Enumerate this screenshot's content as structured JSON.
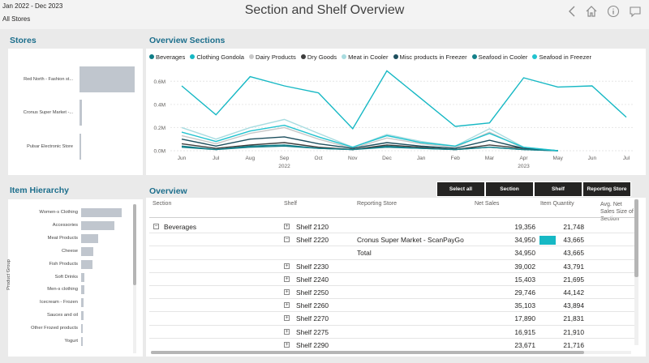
{
  "header": {
    "date_range": "Jan 2022 - Dec 2023",
    "stores_filter": "All Stores",
    "title": "Section and Shelf Overview",
    "icons": [
      "back-icon",
      "home-icon",
      "info-icon",
      "comment-icon"
    ]
  },
  "stores": {
    "title": "Stores",
    "items": [
      {
        "label": "Red North - Fashion st...",
        "value": 1.0
      },
      {
        "label": "Cronus Super Market -...",
        "value": 0.05
      },
      {
        "label": "Pulsar Electronic Store",
        "value": 0.01
      }
    ]
  },
  "item_hierarchy": {
    "title": "Item Hierarchy",
    "axis_label": "Product Group",
    "items": [
      {
        "label": "Women-s Clothing",
        "value": 1.0
      },
      {
        "label": "Accessories",
        "value": 0.82
      },
      {
        "label": "Meat Products",
        "value": 0.42
      },
      {
        "label": "Cheese",
        "value": 0.3
      },
      {
        "label": "Fish Products",
        "value": 0.28
      },
      {
        "label": "Soft Drinks",
        "value": 0.08
      },
      {
        "label": "Men-s clothing",
        "value": 0.07
      },
      {
        "label": "Icecream - Frozen",
        "value": 0.06
      },
      {
        "label": "Sauces and oil",
        "value": 0.05
      },
      {
        "label": "Other Frozed products",
        "value": 0.04
      },
      {
        "label": "Yogurt",
        "value": 0.03
      }
    ]
  },
  "overview_sections": {
    "title": "Overview Sections"
  },
  "chart_data": {
    "type": "line",
    "x": [
      "Jun",
      "Jul",
      "Aug",
      "Sep",
      "Oct",
      "Nov",
      "Dec",
      "Jan",
      "Feb",
      "Mar",
      "Apr",
      "May",
      "Jun",
      "Jul"
    ],
    "x_year_labels": [
      {
        "label": "2022",
        "index": 3
      },
      {
        "label": "2023",
        "index": 10
      }
    ],
    "ylim": [
      0,
      0.7
    ],
    "yticks": [
      "0.0M",
      "0.2M",
      "0.4M",
      "0.6M"
    ],
    "ytick_values": [
      0,
      0.2,
      0.4,
      0.6
    ],
    "legend": "top",
    "series": [
      {
        "name": "Beverages",
        "color": "#0e7c86",
        "values": [
          0.04,
          0.01,
          0.04,
          0.05,
          0.02,
          0.01,
          0.04,
          0.02,
          0.01,
          0.03,
          0.01,
          0.0,
          null,
          null
        ]
      },
      {
        "name": "Clothing Gondola",
        "color": "#16b8c4",
        "values": [
          0.56,
          0.31,
          0.64,
          0.56,
          0.5,
          0.19,
          0.69,
          0.45,
          0.21,
          0.24,
          0.63,
          0.55,
          0.56,
          0.29
        ]
      },
      {
        "name": "Dairy Products",
        "color": "#c8c8c8",
        "values": [
          0.13,
          0.06,
          0.15,
          0.2,
          0.1,
          0.02,
          0.11,
          0.06,
          0.03,
          0.16,
          0.02,
          0.0,
          null,
          null
        ]
      },
      {
        "name": "Dry Goods",
        "color": "#3d3d3d",
        "values": [
          0.06,
          0.02,
          0.05,
          0.07,
          0.03,
          0.01,
          0.05,
          0.03,
          0.01,
          0.05,
          0.02,
          0.0,
          null,
          null
        ]
      },
      {
        "name": "Meat in Cooler",
        "color": "#a8dce0",
        "values": [
          0.2,
          0.1,
          0.2,
          0.27,
          0.15,
          0.03,
          0.14,
          0.08,
          0.04,
          0.19,
          0.03,
          0.0,
          null,
          null
        ]
      },
      {
        "name": "Misc products in Freezer",
        "color": "#1d4f5e",
        "values": [
          0.1,
          0.04,
          0.1,
          0.12,
          0.06,
          0.02,
          0.07,
          0.04,
          0.02,
          0.09,
          0.02,
          0.0,
          null,
          null
        ]
      },
      {
        "name": "Seafood in Cooler",
        "color": "#13808a",
        "values": [
          0.03,
          0.01,
          0.03,
          0.04,
          0.02,
          0.01,
          0.03,
          0.02,
          0.01,
          0.03,
          0.01,
          0.0,
          null,
          null
        ]
      },
      {
        "name": "Seafood in Freezer",
        "color": "#21c3cf",
        "values": [
          0.16,
          0.08,
          0.17,
          0.22,
          0.12,
          0.03,
          0.13,
          0.07,
          0.04,
          0.15,
          0.03,
          0.0,
          null,
          null
        ]
      }
    ]
  },
  "overview": {
    "title": "Overview",
    "buttons": [
      "Select all",
      "Section",
      "Shelf",
      "Reporting Store"
    ],
    "columns": [
      "Section",
      "Shelf",
      "Reporting Store",
      "Net Sales",
      "Item Quantity",
      "Avg. Net Sales Size of Section"
    ],
    "bar_max": 34950,
    "rows": [
      {
        "section": "Beverages",
        "shelf": "Shelf 2120",
        "store": "",
        "net_sales": "19,356",
        "qty": "21,748",
        "expanded": false,
        "bar": 0
      },
      {
        "section": "",
        "shelf": "Shelf 2220",
        "store": "Cronus Super Market - ScanPayGo",
        "net_sales": "34,950",
        "qty": "43,665",
        "expanded": true,
        "bar": 34950
      },
      {
        "section": "",
        "shelf": "",
        "store": "Total",
        "net_sales": "34,950",
        "qty": "43,665",
        "expanded": null,
        "bar": 0
      },
      {
        "section": "",
        "shelf": "Shelf 2230",
        "store": "",
        "net_sales": "39,002",
        "qty": "43,791",
        "expanded": false,
        "bar": 0
      },
      {
        "section": "",
        "shelf": "Shelf 2240",
        "store": "",
        "net_sales": "15,403",
        "qty": "21,695",
        "expanded": false,
        "bar": 0
      },
      {
        "section": "",
        "shelf": "Shelf 2250",
        "store": "",
        "net_sales": "29,746",
        "qty": "44,142",
        "expanded": false,
        "bar": 0
      },
      {
        "section": "",
        "shelf": "Shelf 2260",
        "store": "",
        "net_sales": "35,103",
        "qty": "43,894",
        "expanded": false,
        "bar": 0
      },
      {
        "section": "",
        "shelf": "Shelf 2270",
        "store": "",
        "net_sales": "17,890",
        "qty": "21,831",
        "expanded": false,
        "bar": 0
      },
      {
        "section": "",
        "shelf": "Shelf 2275",
        "store": "",
        "net_sales": "16,915",
        "qty": "21,910",
        "expanded": false,
        "bar": 0
      },
      {
        "section": "",
        "shelf": "Shelf 2290",
        "store": "",
        "net_sales": "23,671",
        "qty": "21,716",
        "expanded": false,
        "bar": 0
      }
    ]
  }
}
